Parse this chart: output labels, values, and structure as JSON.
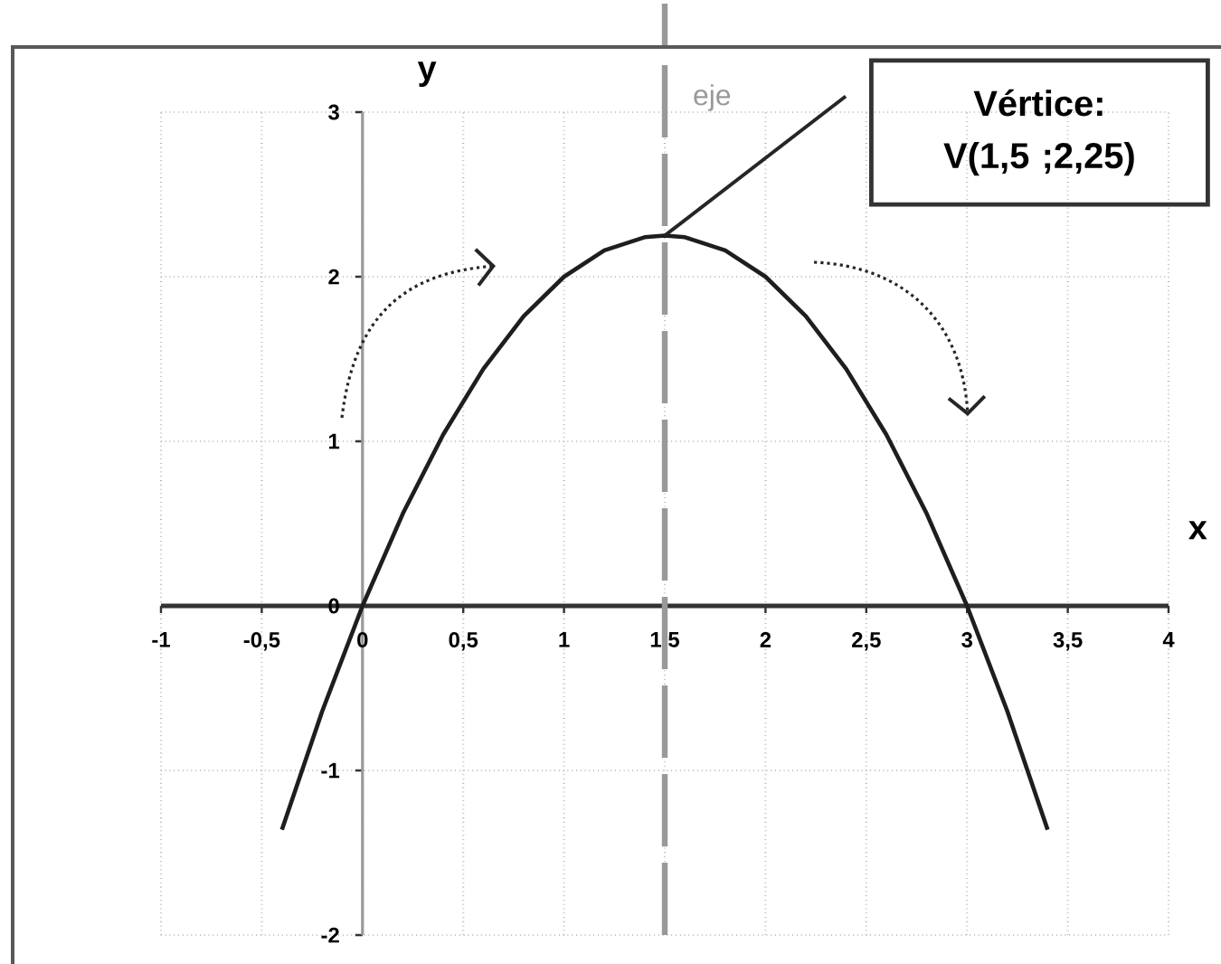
{
  "chart_data": {
    "type": "line",
    "xlabel": "x",
    "ylabel": "y",
    "x": [
      -0.4,
      -0.2,
      0,
      0.2,
      0.4,
      0.6,
      0.8,
      1,
      1.2,
      1.4,
      1.5,
      1.6,
      1.8,
      2,
      2.2,
      2.4,
      2.6,
      2.8,
      3,
      3.2,
      3.4
    ],
    "series": [
      {
        "color": "#1e1e1e",
        "values": [
          -1.36,
          -0.64,
          0,
          0.56,
          1.04,
          1.44,
          1.76,
          2,
          2.16,
          2.24,
          2.25,
          2.24,
          2.16,
          2,
          1.76,
          1.44,
          1.04,
          0.56,
          0,
          -0.64,
          -1.36
        ]
      }
    ],
    "xlim": [
      -1,
      4
    ],
    "ylim": [
      -2,
      3
    ],
    "xticks": [
      -1,
      {
        "value": -0.5,
        "label": "-0,5"
      },
      0,
      {
        "value": 0.5,
        "label": "0,5"
      },
      1,
      {
        "value": 1.5,
        "label": "1,5"
      },
      2,
      {
        "value": 2.5,
        "label": "2,5"
      },
      3,
      {
        "value": 3.5,
        "label": "3,5"
      },
      4
    ],
    "yticks": [
      -2,
      -1,
      0,
      1,
      2,
      3
    ],
    "grid": true,
    "line_style": "solid",
    "ref_lines": [
      {
        "axis": "x",
        "value": 1.5,
        "label": "eje",
        "color": "#999999",
        "line_style": "dashed"
      }
    ],
    "annotations": [
      "Vértice: V(1,5 ;2,25)"
    ]
  }
}
